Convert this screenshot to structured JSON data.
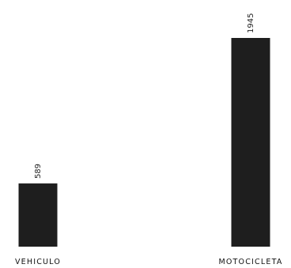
{
  "chart_data": {
    "type": "bar",
    "title": "",
    "xlabel": "",
    "ylabel": "",
    "categories": [
      "VEHICULO",
      "MOTOCICLETA"
    ],
    "values": [
      589,
      1945
    ],
    "ylim": [
      0,
      1945
    ],
    "grid": false,
    "legend": "none",
    "bar_color": "#1e1e1e",
    "data_labels": true
  }
}
